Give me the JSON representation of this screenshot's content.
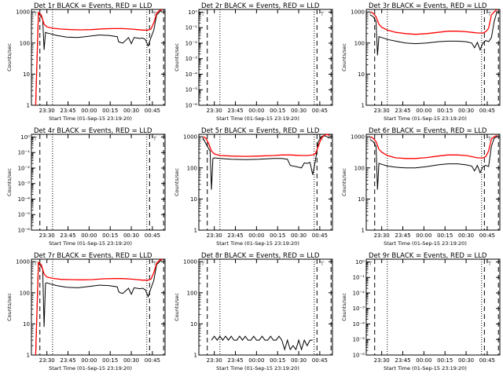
{
  "chart_data": [
    {
      "type": "line",
      "title": "Det 1r BLACK = Events, RED = LLD",
      "ylabel": "Counts/sec",
      "xlabel": "Start Time (01-Sep-15 23:19:20)",
      "x_ticks": [
        "23:30",
        "23:45",
        "00:00",
        "00:15",
        "00:30",
        "00:45"
      ],
      "y_scale": "log",
      "y_ticks": [
        "1",
        "10",
        "100",
        "1000"
      ],
      "ylim": [
        1,
        1200
      ],
      "series": [
        {
          "color": "#000000",
          "x": [
            0,
            2,
            5,
            6,
            7,
            8,
            10,
            15,
            22,
            30,
            38,
            45,
            52,
            58,
            59,
            60,
            62,
            66,
            68,
            70,
            72,
            74,
            76,
            78,
            80,
            82,
            84,
            86,
            90
          ],
          "y": [
            1,
            900,
            600,
            60,
            220,
            210,
            200,
            175,
            155,
            150,
            165,
            180,
            175,
            160,
            110,
            105,
            100,
            150,
            95,
            150,
            145,
            140,
            145,
            130,
            80,
            150,
            260,
            800,
            1200
          ]
        },
        {
          "color": "#ff0000",
          "x": [
            0,
            2,
            4,
            6,
            8,
            12,
            18,
            25,
            32,
            40,
            48,
            55,
            62,
            68,
            72,
            76,
            80,
            82,
            84,
            86,
            88,
            90
          ],
          "y": [
            1,
            950,
            800,
            400,
            330,
            300,
            280,
            270,
            265,
            270,
            285,
            290,
            290,
            280,
            270,
            260,
            260,
            280,
            450,
            900,
            1100,
            1200
          ]
        }
      ],
      "vlines_dashed": [
        3,
        81,
        91
      ],
      "vlines_dotted": [
        12,
        79
      ],
      "x_range": [
        -3,
        92
      ]
    },
    {
      "type": "line",
      "title": "Det 2r BLACK = Events, RED = LLD",
      "ylabel": "Counts/sec",
      "xlabel": "Start Time (01-Sep-15 23:19:20)",
      "x_ticks": [
        "23:30",
        "23:45",
        "00:00",
        "00:15",
        "00:30",
        "00:45"
      ],
      "y_scale": "log",
      "y_ticks": [
        "10⁻⁶",
        "10⁻⁵",
        "10⁻⁴",
        "10⁻³",
        "10⁻²",
        "10⁻¹",
        "10⁰"
      ],
      "ylim": [
        1e-06,
        1.5
      ],
      "series": [],
      "vlines_dashed": [
        3,
        81,
        91
      ],
      "vlines_dotted": [
        12,
        79
      ],
      "x_range": [
        -3,
        92
      ]
    },
    {
      "type": "line",
      "title": "Det 3r BLACK = Events, RED = LLD",
      "ylabel": "Counts/sec",
      "xlabel": "Start Time (01-Sep-15 23:19:20)",
      "x_ticks": [
        "23:30",
        "23:45",
        "00:00",
        "00:15",
        "00:30",
        "00:45"
      ],
      "y_scale": "log",
      "y_ticks": [
        "1",
        "10",
        "100",
        "1000"
      ],
      "ylim": [
        1,
        1200
      ],
      "series": [
        {
          "color": "#000000",
          "x": [
            0,
            2,
            4,
            5,
            6,
            8,
            12,
            18,
            25,
            32,
            40,
            48,
            55,
            62,
            68,
            72,
            74,
            76,
            78,
            80,
            82,
            84,
            86,
            88,
            90
          ],
          "y": [
            800,
            700,
            500,
            40,
            160,
            150,
            130,
            115,
            100,
            95,
            100,
            110,
            115,
            115,
            110,
            100,
            70,
            105,
            60,
            100,
            120,
            110,
            150,
            500,
            1000
          ]
        },
        {
          "color": "#ff0000",
          "x": [
            0,
            2,
            4,
            6,
            8,
            12,
            18,
            25,
            32,
            40,
            48,
            55,
            62,
            68,
            72,
            76,
            80,
            82,
            84,
            86,
            88,
            90
          ],
          "y": [
            1000,
            900,
            700,
            400,
            320,
            260,
            220,
            200,
            190,
            200,
            220,
            240,
            240,
            230,
            220,
            210,
            210,
            230,
            300,
            800,
            1000,
            1200
          ]
        }
      ],
      "vlines_dashed": [
        3,
        81,
        91
      ],
      "vlines_dotted": [
        12,
        79
      ],
      "x_range": [
        -3,
        92
      ]
    },
    {
      "type": "line",
      "title": "Det 4r BLACK = Events, RED = LLD",
      "ylabel": "Counts/sec",
      "xlabel": "Start Time (01-Sep-15 23:19:20)",
      "x_ticks": [
        "23:30",
        "23:45",
        "00:00",
        "00:15",
        "00:30",
        "00:45"
      ],
      "y_scale": "log",
      "y_ticks": [
        "10⁻⁶",
        "10⁻⁵",
        "10⁻⁴",
        "10⁻³",
        "10⁻²",
        "10⁻¹",
        "10⁰"
      ],
      "ylim": [
        1e-06,
        1.5
      ],
      "series": [],
      "vlines_dashed": [
        3,
        81,
        91
      ],
      "vlines_dotted": [
        12,
        79
      ],
      "x_range": [
        -3,
        92
      ]
    },
    {
      "type": "line",
      "title": "Det 5r BLACK = Events, RED = LLD",
      "ylabel": "Counts/sec",
      "xlabel": "Start Time (01-Sep-15 23:19:20)",
      "x_ticks": [
        "23:30",
        "23:45",
        "00:00",
        "00:15",
        "00:30",
        "00:45"
      ],
      "y_scale": "log",
      "y_ticks": [
        "1",
        "10",
        "100",
        "1000"
      ],
      "ylim": [
        1,
        1200
      ],
      "series": [
        {
          "color": "#000000",
          "x": [
            0,
            2,
            5,
            6,
            7,
            8,
            12,
            20,
            30,
            40,
            50,
            56,
            60,
            62,
            66,
            70,
            72,
            74,
            76,
            78,
            80,
            82,
            84,
            86,
            88,
            90
          ],
          "y": [
            900,
            600,
            350,
            20,
            200,
            210,
            200,
            190,
            185,
            190,
            200,
            200,
            190,
            120,
            110,
            100,
            145,
            140,
            150,
            60,
            180,
            700,
            1000,
            1100,
            1000,
            900
          ]
        },
        {
          "color": "#ff0000",
          "x": [
            0,
            2,
            4,
            6,
            8,
            12,
            20,
            30,
            40,
            50,
            56,
            62,
            66,
            70,
            74,
            78,
            80,
            82,
            84,
            86,
            88,
            90
          ],
          "y": [
            1000,
            900,
            600,
            350,
            280,
            250,
            240,
            235,
            240,
            250,
            260,
            260,
            255,
            250,
            250,
            260,
            290,
            500,
            900,
            1100,
            1200,
            1100
          ]
        }
      ],
      "vlines_dashed": [
        3,
        81,
        91
      ],
      "vlines_dotted": [
        12,
        79
      ],
      "x_range": [
        -3,
        92
      ]
    },
    {
      "type": "line",
      "title": "Det 6r BLACK = Events, RED = LLD",
      "ylabel": "Counts/sec",
      "xlabel": "Start Time (01-Sep-15 23:19:20)",
      "x_ticks": [
        "23:30",
        "23:45",
        "00:00",
        "00:15",
        "00:30",
        "00:45"
      ],
      "y_scale": "log",
      "y_ticks": [
        "1",
        "10",
        "100",
        "1000"
      ],
      "ylim": [
        1,
        1200
      ],
      "series": [
        {
          "color": "#000000",
          "x": [
            0,
            2,
            4,
            5,
            6,
            8,
            12,
            18,
            25,
            32,
            40,
            48,
            55,
            62,
            68,
            72,
            74,
            76,
            78,
            80,
            82,
            84,
            86,
            88,
            90
          ],
          "y": [
            800,
            700,
            500,
            20,
            140,
            130,
            115,
            105,
            100,
            100,
            110,
            125,
            135,
            135,
            125,
            115,
            80,
            120,
            70,
            110,
            120,
            110,
            500,
            900,
            1000
          ]
        },
        {
          "color": "#ff0000",
          "x": [
            0,
            2,
            4,
            6,
            8,
            12,
            18,
            25,
            32,
            40,
            48,
            55,
            62,
            68,
            72,
            76,
            80,
            82,
            84,
            86,
            88,
            90
          ],
          "y": [
            1000,
            900,
            700,
            400,
            320,
            250,
            210,
            200,
            200,
            215,
            240,
            260,
            260,
            250,
            230,
            210,
            210,
            230,
            350,
            850,
            1000,
            1100
          ]
        }
      ],
      "vlines_dashed": [
        3,
        81,
        91
      ],
      "vlines_dotted": [
        12,
        79
      ],
      "x_range": [
        -3,
        92
      ]
    },
    {
      "type": "line",
      "title": "Det 7r BLACK = Events, RED = LLD",
      "ylabel": "Counts/sec",
      "xlabel": "Start Time (01-Sep-15 23:19:20)",
      "x_ticks": [
        "23:30",
        "23:45",
        "00:00",
        "00:15",
        "00:30",
        "00:45"
      ],
      "y_scale": "log",
      "y_ticks": [
        "1",
        "10",
        "100",
        "1000"
      ],
      "ylim": [
        1,
        1200
      ],
      "series": [
        {
          "color": "#000000",
          "x": [
            0,
            2,
            5,
            6,
            7,
            8,
            10,
            15,
            22,
            30,
            38,
            45,
            52,
            58,
            59,
            60,
            62,
            66,
            68,
            70,
            72,
            74,
            76,
            78,
            80,
            82,
            84,
            86,
            90
          ],
          "y": [
            1,
            900,
            600,
            8,
            200,
            210,
            195,
            170,
            150,
            145,
            160,
            175,
            170,
            155,
            110,
            100,
            95,
            140,
            90,
            145,
            140,
            135,
            140,
            125,
            75,
            140,
            250,
            800,
            1200
          ]
        },
        {
          "color": "#ff0000",
          "x": [
            0,
            2,
            4,
            6,
            8,
            12,
            18,
            25,
            32,
            40,
            48,
            55,
            62,
            68,
            72,
            76,
            80,
            82,
            84,
            86,
            88,
            90
          ],
          "y": [
            1,
            950,
            800,
            400,
            320,
            290,
            270,
            265,
            260,
            265,
            280,
            285,
            285,
            275,
            265,
            255,
            255,
            275,
            440,
            880,
            1100,
            1200
          ]
        }
      ],
      "vlines_dashed": [
        3,
        81,
        91
      ],
      "vlines_dotted": [
        12,
        79
      ],
      "x_range": [
        -3,
        92
      ]
    },
    {
      "type": "line",
      "title": "Det 8r BLACK = Events, RED = LLD",
      "ylabel": "Counts/sec",
      "xlabel": "Start Time (01-Sep-15 23:19:20)",
      "x_ticks": [
        "23:30",
        "23:45",
        "00:00",
        "00:15",
        "00:30",
        "00:45"
      ],
      "y_scale": "log",
      "y_ticks": [
        "1",
        "10",
        "100",
        "1000"
      ],
      "ylim": [
        1,
        1200
      ],
      "series": [
        {
          "color": "#000000",
          "x": [
            6,
            8,
            10,
            12,
            14,
            16,
            18,
            20,
            22,
            24,
            26,
            28,
            30,
            32,
            34,
            36,
            38,
            40,
            42,
            44,
            46,
            48,
            50,
            52,
            54,
            56,
            58,
            60,
            62,
            64,
            66,
            68,
            70,
            72,
            74,
            76,
            78
          ],
          "y": [
            3,
            4,
            3,
            4,
            3,
            4,
            3,
            4,
            3,
            3,
            4,
            3,
            4,
            3,
            3,
            4,
            3,
            3,
            4,
            3,
            3,
            4,
            3,
            3,
            4,
            3,
            1.5,
            3,
            1.5,
            2,
            1.5,
            3,
            1.5,
            3,
            2,
            3,
            3
          ]
        }
      ],
      "vlines_dashed": [
        3,
        81,
        91
      ],
      "vlines_dotted": [
        12,
        79
      ],
      "x_range": [
        -3,
        92
      ]
    },
    {
      "type": "line",
      "title": "Det 9r BLACK = Events, RED = LLD",
      "ylabel": "Counts/sec",
      "xlabel": "Start Time (01-Sep-15 23:19:20)",
      "x_ticks": [
        "23:30",
        "23:45",
        "00:00",
        "00:15",
        "00:30",
        "00:45"
      ],
      "y_scale": "log",
      "y_ticks": [
        "10⁻⁶",
        "10⁻⁵",
        "10⁻⁴",
        "10⁻³",
        "10⁻²",
        "10⁻¹",
        "10⁰"
      ],
      "ylim": [
        1e-06,
        1.5
      ],
      "series": [],
      "vlines_dashed": [
        3,
        81,
        91
      ],
      "vlines_dotted": [
        12,
        79
      ],
      "x_range": [
        -3,
        92
      ]
    }
  ]
}
